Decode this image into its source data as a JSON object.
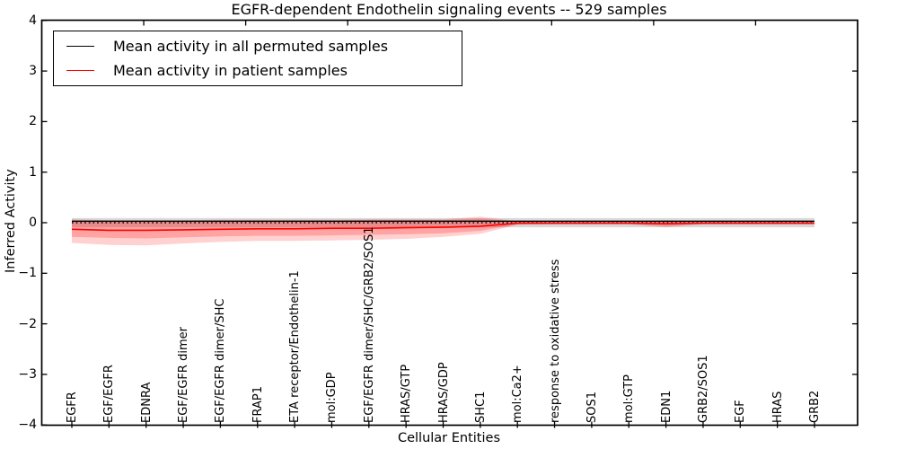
{
  "figure": {
    "title": "EGFR-dependent Endothelin signaling events -- 529 samples",
    "xlabel": "Cellular Entities",
    "ylabel": "Inferred Activity",
    "legend": {
      "entries": [
        {
          "label": "Mean activity in all permuted samples",
          "color": "#000000"
        },
        {
          "label": "Mean activity in patient samples",
          "color": "#ff0000"
        }
      ]
    },
    "ytick_labels": [
      "4",
      "3",
      "2",
      "1",
      "0",
      "−1",
      "−2",
      "−3",
      "−4"
    ]
  },
  "chart_data": {
    "type": "line",
    "title": "EGFR-dependent Endothelin signaling events -- 529 samples",
    "xlabel": "Cellular Entities",
    "ylabel": "Inferred Activity",
    "ylim": [
      -4,
      4
    ],
    "grid": false,
    "legend_position": "upper left",
    "categories": [
      "EGFR",
      "EGF/EGFR",
      "EDNRA",
      "EGF/EGFR dimer",
      "EGF/EGFR dimer/SHC",
      "FRAP1",
      "ETA receptor/Endothelin-1",
      "mol:GDP",
      "EGF/EGFR dimer/SHC/GRB2/SOS1",
      "HRAS/GTP",
      "HRAS/GDP",
      "SHC1",
      "mol:Ca2+",
      "response to oxidative stress",
      "SOS1",
      "mol:GTP",
      "EDN1",
      "GRB2/SOS1",
      "EGF",
      "HRAS",
      "GRB2"
    ],
    "yticks": [
      4,
      3,
      2,
      1,
      0,
      -1,
      -2,
      -3,
      -4
    ],
    "series": [
      {
        "name": "Mean activity in all permuted samples",
        "color": "#000000",
        "values": [
          0.03,
          0.03,
          0.03,
          0.03,
          0.03,
          0.03,
          0.03,
          0.03,
          0.03,
          0.03,
          0.03,
          0.03,
          0.03,
          0.03,
          0.03,
          0.03,
          0.03,
          0.03,
          0.03,
          0.03,
          0.03
        ]
      },
      {
        "name": "Mean activity in patient samples",
        "color": "#ff0000",
        "values": [
          -0.13,
          -0.15,
          -0.15,
          -0.14,
          -0.13,
          -0.12,
          -0.12,
          -0.11,
          -0.11,
          -0.1,
          -0.09,
          -0.07,
          -0.01,
          -0.01,
          -0.01,
          -0.01,
          -0.02,
          -0.01,
          -0.01,
          -0.01,
          -0.01
        ]
      }
    ],
    "zero_line": {
      "y": 0,
      "style": "dotted",
      "color": "#000000"
    },
    "bands": [
      {
        "name": "permuted-std-band",
        "color": "rgba(0,0,0,0.15)",
        "upper": [
          0.09,
          0.09,
          0.09,
          0.09,
          0.09,
          0.09,
          0.09,
          0.09,
          0.09,
          0.09,
          0.09,
          0.09,
          0.09,
          0.09,
          0.09,
          0.09,
          0.09,
          0.09,
          0.09,
          0.09,
          0.09
        ],
        "lower": [
          -0.09,
          -0.09,
          -0.09,
          -0.09,
          -0.09,
          -0.09,
          -0.09,
          -0.09,
          -0.09,
          -0.09,
          -0.09,
          -0.09,
          -0.09,
          -0.09,
          -0.09,
          -0.09,
          -0.09,
          -0.09,
          -0.09,
          -0.09,
          -0.09
        ]
      },
      {
        "name": "patient-std-band-outer",
        "color": "rgba(255,0,0,0.18)",
        "upper": [
          0.07,
          0.05,
          0.05,
          0.05,
          0.06,
          0.06,
          0.06,
          0.06,
          0.07,
          0.07,
          0.07,
          0.12,
          0.03,
          0.02,
          0.02,
          0.02,
          0.05,
          0.02,
          0.02,
          0.02,
          0.02
        ],
        "lower": [
          -0.4,
          -0.44,
          -0.45,
          -0.41,
          -0.38,
          -0.36,
          -0.36,
          -0.35,
          -0.34,
          -0.32,
          -0.28,
          -0.22,
          -0.04,
          -0.03,
          -0.03,
          -0.03,
          -0.09,
          -0.03,
          -0.03,
          -0.03,
          -0.03
        ]
      },
      {
        "name": "patient-std-band-inner",
        "color": "rgba(255,0,0,0.22)",
        "upper": [
          0.04,
          0.03,
          0.03,
          0.03,
          0.04,
          0.04,
          0.04,
          0.04,
          0.05,
          0.05,
          0.05,
          0.08,
          0.02,
          0.01,
          0.01,
          0.01,
          0.03,
          0.01,
          0.01,
          0.01,
          0.01
        ],
        "lower": [
          -0.28,
          -0.3,
          -0.31,
          -0.29,
          -0.27,
          -0.26,
          -0.26,
          -0.25,
          -0.24,
          -0.23,
          -0.21,
          -0.16,
          -0.03,
          -0.02,
          -0.02,
          -0.02,
          -0.06,
          -0.02,
          -0.02,
          -0.02,
          -0.02
        ]
      }
    ]
  }
}
